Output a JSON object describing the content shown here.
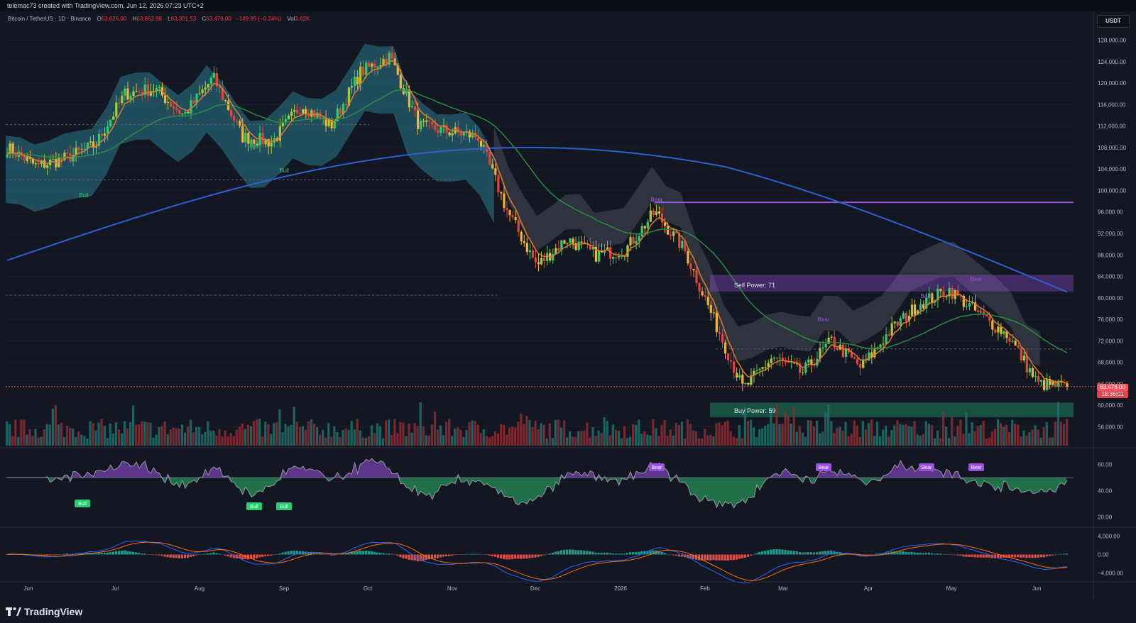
{
  "header": {
    "attribution": "telemac73 created with TradingView.com, Jun 12, 2026 07:23 UTC+2"
  },
  "legend": {
    "symbol": "Bitcoin / TetherUS · 1D · Binance",
    "open_label": "O",
    "open": "63,626.00",
    "high_label": "H",
    "high": "63,863.98",
    "low_label": "L",
    "low": "63,301.53",
    "close_label": "C",
    "close": "63,476.00",
    "change": "−149.99 (−0.24%)",
    "vol_label": "Vol",
    "vol": "3.62K"
  },
  "currency_button": "USDT",
  "last_price": {
    "price": "63,476.00",
    "countdown": "18:36:01"
  },
  "annotations": {
    "sell_power": "Sell Power: 71",
    "buy_power": "Buy Power: 59",
    "bull": "Bull",
    "bear": "Bear"
  },
  "branding": {
    "logo_text": "TradingView"
  },
  "colors": {
    "background": "#131722",
    "up": "#089981",
    "down": "#f23645",
    "ema_fast": "#e07b2e",
    "ema_mid": "#2a8a45",
    "ema_slow": "#2f5fd0",
    "teal_zone": "#2b7a8a",
    "gray_zone": "#3a3d48",
    "purple": "#9b51e0",
    "buy_zone": "#1b6b50"
  },
  "chart_data": {
    "type": "candlestick",
    "title": "",
    "xlabel": "",
    "ylabel": "",
    "x_ticks": [
      "Jun",
      "Jul",
      "Aug",
      "Sep",
      "Oct",
      "Nov",
      "Dec",
      "2026",
      "Feb",
      "Mar",
      "Apr",
      "May",
      "Jun"
    ],
    "y_ticks": [
      "128,000.00",
      "124,000.00",
      "120,000.00",
      "116,000.00",
      "112,000.00",
      "108,000.00",
      "104,000.00",
      "100,000.00",
      "96,000.00",
      "92,000.00",
      "88,000.00",
      "84,000.00",
      "80,000.00",
      "76,000.00",
      "72,000.00",
      "68,000.00",
      "64,000.00",
      "60,000.00",
      "56,000.00"
    ],
    "ylim": [
      52500,
      131500
    ],
    "price_path": [
      [
        "Jun",
        108000
      ],
      [
        "Jun-mid",
        104500
      ],
      [
        "Jun-late",
        106000
      ],
      [
        "Jul",
        108500
      ],
      [
        "Jul-mid",
        118000
      ],
      [
        "Jul-late",
        119000
      ],
      [
        "Aug",
        114000
      ],
      [
        "Aug-mid",
        121000
      ],
      [
        "Aug-late",
        110000
      ],
      [
        "Sep",
        109000
      ],
      [
        "Sep-mid",
        116000
      ],
      [
        "Sep-late",
        112000
      ],
      [
        "Oct",
        122000
      ],
      [
        "Oct-6",
        125000
      ],
      [
        "Oct-10",
        112000
      ],
      [
        "Oct-late",
        111000
      ],
      [
        "Nov",
        110000
      ],
      [
        "Nov-mid",
        96000
      ],
      [
        "Nov-late",
        86000
      ],
      [
        "Dec",
        91000
      ],
      [
        "Dec-mid",
        88000
      ],
      [
        "2026",
        89000
      ],
      [
        "Jan-mid",
        96000
      ],
      [
        "Jan-late",
        89000
      ],
      [
        "Feb",
        76000
      ],
      [
        "Feb-6",
        63000
      ],
      [
        "Feb-mid",
        69000
      ],
      [
        "Mar",
        66000
      ],
      [
        "Mar-mid",
        72000
      ],
      [
        "Apr",
        67000
      ],
      [
        "Apr-mid",
        74000
      ],
      [
        "May",
        79000
      ],
      [
        "May-mid",
        81500
      ],
      [
        "May-late",
        77000
      ],
      [
        "Jun",
        73000
      ],
      [
        "Jun-8",
        64000
      ],
      [
        "Jun-12",
        63476
      ]
    ],
    "indicators": {
      "rsi_ticks": [
        "60.00",
        "40.00",
        "20.00"
      ],
      "macd_ticks": [
        "4,000.00",
        "0.00",
        "−4,000.00"
      ],
      "zones": {
        "sell_power": 71,
        "buy_power": 59
      }
    }
  }
}
